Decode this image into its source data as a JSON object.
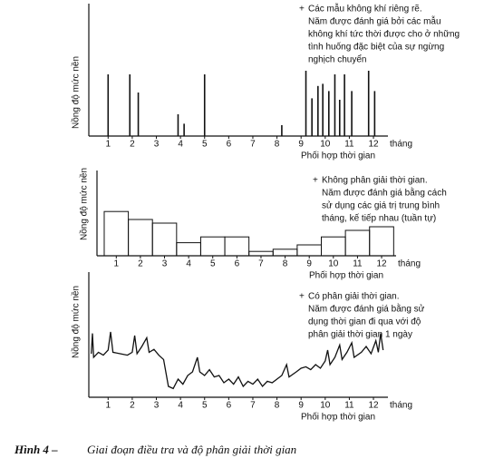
{
  "chart_data": [
    {
      "type": "stem",
      "ylabel": "Nồng độ mức nền",
      "xlabel": "Phối hợp thời gian",
      "x_unit": "tháng",
      "annotation": [
        "Các mẫu không khí riêng rẽ.",
        "Năm được đánh giá bởi các mẫu",
        "không khí tức thời được cho ở những",
        "tình huống đặc biệt của sự ngừng",
        "nghịch chuyển"
      ],
      "x": [
        1.0,
        1.9,
        2.25,
        3.9,
        4.15,
        5.0,
        8.2,
        9.2,
        9.45,
        9.7,
        9.9,
        10.15,
        10.4,
        10.6,
        10.8,
        11.1,
        11.8,
        12.05
      ],
      "values": [
        85,
        85,
        60,
        30,
        17,
        85,
        15,
        90,
        52,
        69,
        72,
        62,
        85,
        50,
        85,
        62,
        90,
        62
      ],
      "color": "#111111",
      "xlim": [
        0.2,
        12.6
      ],
      "ylim": [
        0,
        100
      ],
      "xticks": [
        1,
        2,
        3,
        4,
        5,
        6,
        7,
        8,
        9,
        10,
        11,
        12
      ]
    },
    {
      "type": "bar",
      "ylabel": "Nồng độ mức nền",
      "xlabel": "Phối hợp thời gian",
      "x_unit": "tháng",
      "annotation": [
        "Không phân giải thời gian.",
        "Năm được đánh giá bằng cách",
        "sử dụng các giá trị trung bình",
        "tháng, kế tiếp nhau (tuần tự)"
      ],
      "x": [
        1,
        2,
        3,
        4,
        5,
        6,
        7,
        8,
        9,
        10,
        11,
        12
      ],
      "values": [
        61,
        50,
        45,
        18,
        26,
        26,
        6,
        9,
        15,
        26,
        35,
        40
      ],
      "color": "#111111",
      "xlim": [
        0.2,
        12.6
      ],
      "ylim": [
        0,
        100
      ],
      "xticks": [
        1,
        2,
        3,
        4,
        5,
        6,
        7,
        8,
        9,
        10,
        11,
        12
      ]
    },
    {
      "type": "line",
      "ylabel": "Nồng độ mức nền",
      "xlabel": "Phối hợp thời gian",
      "x_unit": "tháng",
      "annotation": [
        "Có phân giải thời gian.",
        "Năm được đánh giá bằng sử",
        "dụng thời gian đi qua với độ",
        "phân giải thời gian 1 ngày"
      ],
      "x": [
        0.3,
        0.35,
        0.4,
        0.6,
        0.8,
        1.0,
        1.1,
        1.2,
        1.5,
        1.8,
        2.0,
        2.1,
        2.2,
        2.4,
        2.6,
        2.7,
        2.9,
        3.1,
        3.3,
        3.5,
        3.7,
        3.9,
        4.1,
        4.3,
        4.5,
        4.7,
        4.8,
        5.0,
        5.2,
        5.4,
        5.6,
        5.8,
        6.0,
        6.2,
        6.4,
        6.6,
        6.8,
        7.0,
        7.2,
        7.4,
        7.6,
        7.8,
        8.0,
        8.2,
        8.4,
        8.5,
        8.8,
        9.0,
        9.2,
        9.4,
        9.6,
        9.8,
        10.0,
        10.1,
        10.2,
        10.4,
        10.6,
        10.7,
        10.9,
        11.1,
        11.2,
        11.5,
        11.7,
        11.9,
        12.1,
        12.2,
        12.3,
        12.4
      ],
      "values": [
        60,
        88,
        55,
        62,
        58,
        65,
        90,
        62,
        60,
        58,
        62,
        85,
        60,
        70,
        82,
        62,
        66,
        58,
        52,
        15,
        12,
        25,
        18,
        30,
        35,
        55,
        35,
        30,
        38,
        28,
        30,
        20,
        25,
        18,
        28,
        15,
        22,
        18,
        25,
        15,
        22,
        20,
        25,
        30,
        45,
        28,
        35,
        40,
        42,
        38,
        45,
        40,
        50,
        65,
        45,
        55,
        72,
        52,
        62,
        75,
        55,
        62,
        70,
        60,
        78,
        62,
        88,
        65
      ],
      "color": "#111111",
      "xlim": [
        0.2,
        12.6
      ],
      "ylim": [
        0,
        100
      ],
      "xticks": [
        1,
        2,
        3,
        4,
        5,
        6,
        7,
        8,
        9,
        10,
        11,
        12
      ]
    }
  ],
  "caption": {
    "label": "Hình 4 –",
    "text": "Giai đoạn điều tra và độ phân giải thời gian"
  }
}
